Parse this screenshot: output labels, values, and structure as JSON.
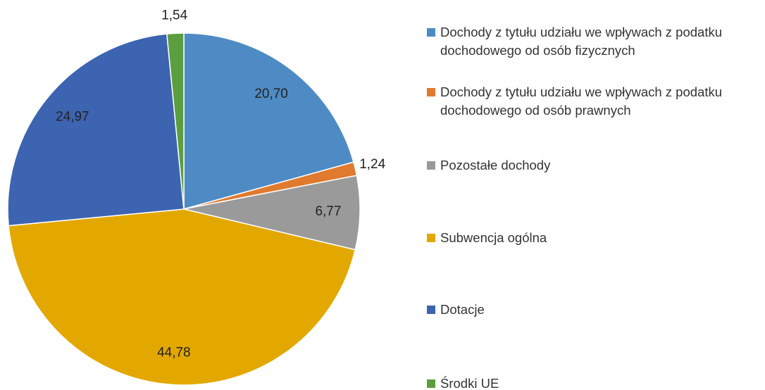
{
  "chart_data": {
    "type": "pie",
    "categories": [
      "Dochody z tytułu udziału we wpływach z podatku dochodowego od osób fizycznych",
      "Dochody z tytułu udziału we wpływach z podatku dochodowego od osób prawnych",
      "Pozostałe dochody",
      "Subwencja ogólna",
      "Dotacje",
      "Środki UE"
    ],
    "values": [
      20.7,
      1.24,
      6.77,
      44.78,
      24.97,
      1.54
    ],
    "value_labels": [
      "20,70",
      "1,24",
      "6,77",
      "44,78",
      "24,97",
      "1,54"
    ],
    "colors": [
      "#4e8bc4",
      "#e07a2e",
      "#9a9a9a",
      "#e3a800",
      "#3d64b1",
      "#5b9e3f"
    ],
    "legend": "right"
  }
}
